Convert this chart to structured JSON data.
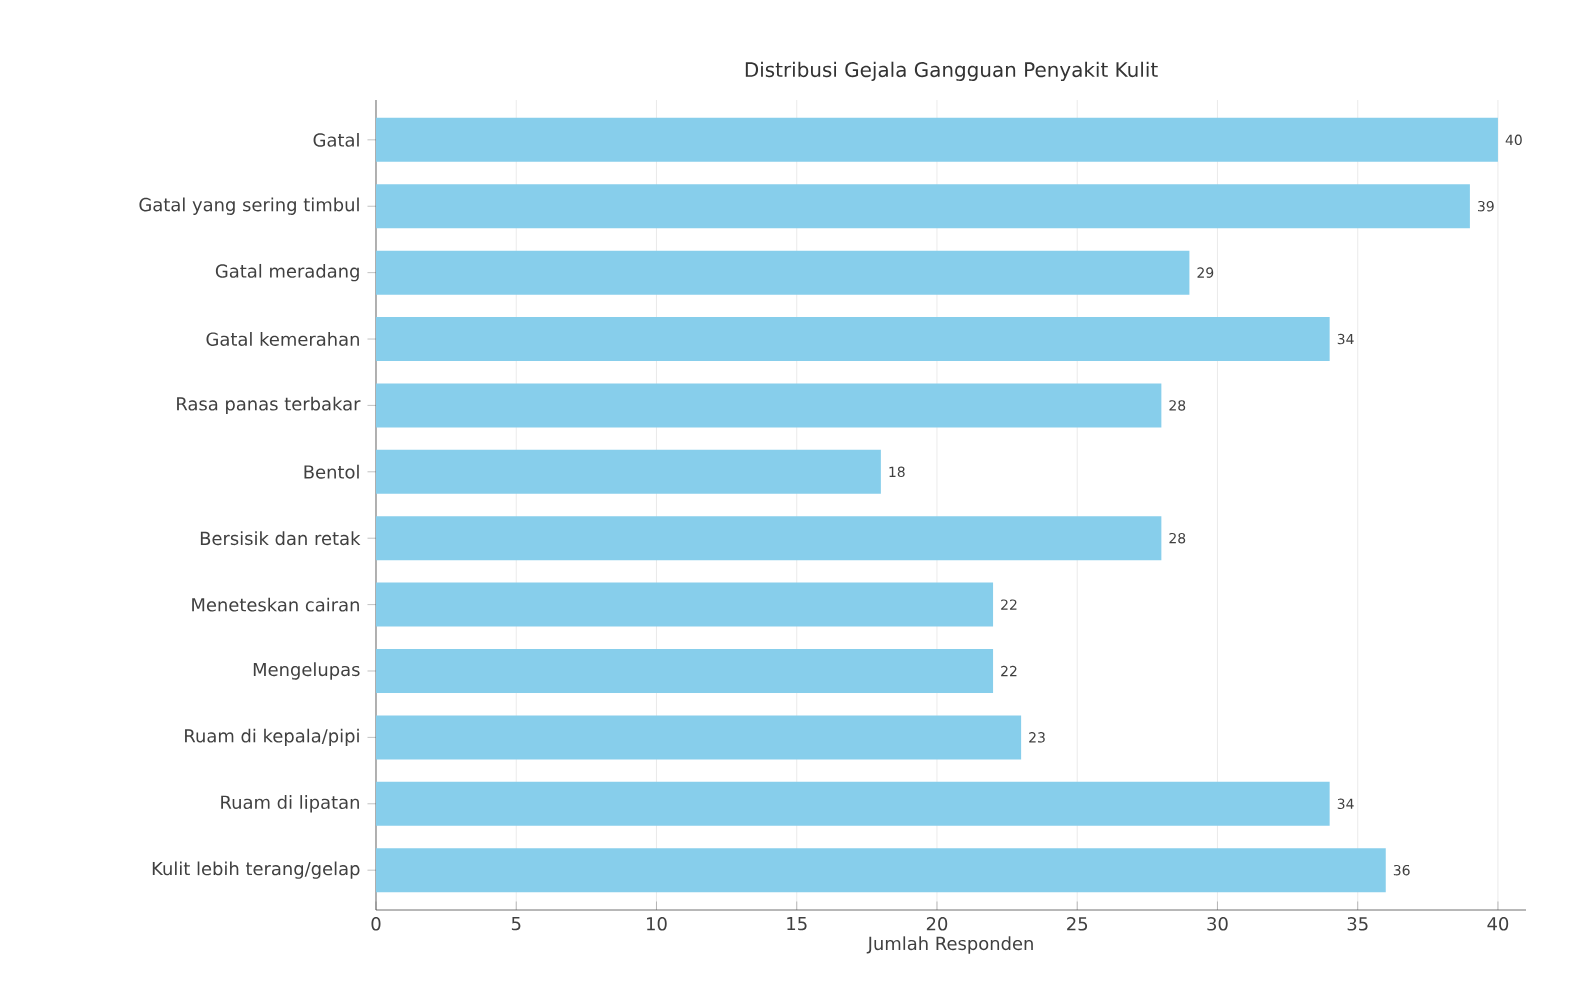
{
  "chart_data": {
    "type": "bar",
    "orientation": "horizontal",
    "title": "Distribusi Gejala Gangguan Penyakit Kulit",
    "xlabel": "Jumlah Responden",
    "categories": [
      "Gatal",
      "Gatal yang sering timbul",
      "Gatal meradang",
      "Gatal kemerahan",
      "Rasa panas terbakar",
      "Bentol",
      "Bersisik dan retak",
      "Meneteskan cairan",
      "Mengelupas",
      "Ruam di kepala/pipi",
      "Ruam di lipatan",
      "Kulit lebih terang/gelap"
    ],
    "values": [
      40,
      39,
      29,
      34,
      28,
      18,
      28,
      22,
      22,
      23,
      34,
      36
    ],
    "color": "#87ceeb",
    "xlim": [
      0,
      41
    ],
    "xticks": [
      0,
      5,
      10,
      15,
      20,
      25,
      30,
      35,
      40
    ],
    "grid": "x",
    "data_labels": true
  }
}
